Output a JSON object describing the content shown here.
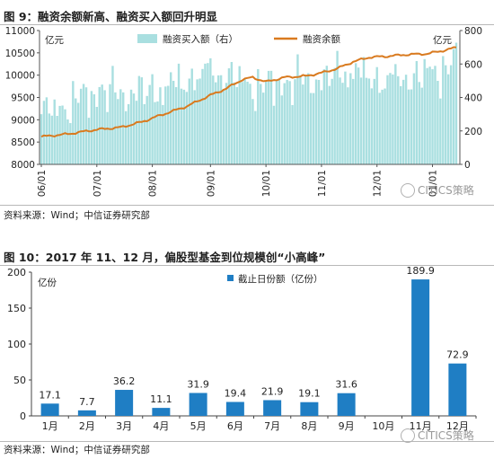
{
  "figure1": {
    "title": "图 9：融资余额新高、融资买入额回升明显",
    "source": "资料来源：Wind；中信证券研究部",
    "watermark": "CITICS策略",
    "chart_data": {
      "type": "bar+line",
      "legend": {
        "bar": "融资买入额（右）",
        "line": "融资余额"
      },
      "left_unit": "亿元",
      "right_unit": "亿元",
      "y_left": {
        "range": [
          8000,
          11000
        ],
        "ticks": [
          8000,
          8500,
          9000,
          9500,
          10000,
          10500,
          11000
        ]
      },
      "y_right": {
        "range": [
          0,
          800
        ],
        "ticks": [
          0,
          200,
          400,
          600,
          800
        ]
      },
      "x_ticks": [
        "06/01",
        "07/01",
        "08/01",
        "09/01",
        "10/01",
        "11/01",
        "12/01",
        "01/01"
      ],
      "x_tick_index": [
        0,
        21,
        42,
        64,
        85,
        106,
        127,
        148
      ],
      "line_anchors": [
        [
          0,
          8620
        ],
        [
          10,
          8680
        ],
        [
          21,
          8780
        ],
        [
          30,
          8830
        ],
        [
          38,
          8950
        ],
        [
          45,
          9100
        ],
        [
          55,
          9300
        ],
        [
          64,
          9550
        ],
        [
          70,
          9700
        ],
        [
          76,
          9900
        ],
        [
          80,
          9950
        ],
        [
          85,
          9850
        ],
        [
          92,
          9950
        ],
        [
          100,
          9980
        ],
        [
          106,
          10050
        ],
        [
          112,
          10150
        ],
        [
          118,
          10300
        ],
        [
          124,
          10400
        ],
        [
          130,
          10420
        ],
        [
          138,
          10460
        ],
        [
          146,
          10480
        ],
        [
          152,
          10550
        ],
        [
          157,
          10620
        ]
      ],
      "bar_anchors": [
        [
          0,
          300
        ],
        [
          8,
          340
        ],
        [
          16,
          400
        ],
        [
          22,
          440
        ],
        [
          30,
          420
        ],
        [
          40,
          430
        ],
        [
          50,
          470
        ],
        [
          58,
          520
        ],
        [
          64,
          560
        ],
        [
          70,
          530
        ],
        [
          78,
          480
        ],
        [
          85,
          460
        ],
        [
          92,
          490
        ],
        [
          100,
          500
        ],
        [
          108,
          510
        ],
        [
          114,
          560
        ],
        [
          120,
          540
        ],
        [
          126,
          510
        ],
        [
          132,
          500
        ],
        [
          138,
          520
        ],
        [
          144,
          530
        ],
        [
          150,
          560
        ],
        [
          157,
          610
        ]
      ],
      "ylabel_left": "亿元",
      "ylabel_right": "亿元"
    }
  },
  "figure2": {
    "title": "图 10：2017 年 11、12 月，偏股型基金到位规模创“小高峰”",
    "source": "资料来源：Wind；中信证券研究部",
    "watermark": "CITICS策略",
    "chart_data": {
      "type": "bar",
      "legend": "截止日份额（亿份）",
      "ylabel": "亿份",
      "ylim": [
        0,
        200
      ],
      "yticks": [
        0,
        50,
        100,
        150,
        200
      ],
      "categories": [
        "1月",
        "2月",
        "3月",
        "4月",
        "5月",
        "6月",
        "7月",
        "8月",
        "9月",
        "10月",
        "11月",
        "12月"
      ],
      "values": [
        17.1,
        7.7,
        36.2,
        11.1,
        31.9,
        19.4,
        21.9,
        19.1,
        31.6,
        null,
        189.9,
        72.9
      ],
      "labels": [
        "17.1",
        "7.7",
        "36.2",
        "11.1",
        "31.9",
        "19.4",
        "21.9",
        "19.1",
        "31.6",
        "",
        "189.9",
        "72.9"
      ],
      "color": "#1f7ec4"
    }
  }
}
